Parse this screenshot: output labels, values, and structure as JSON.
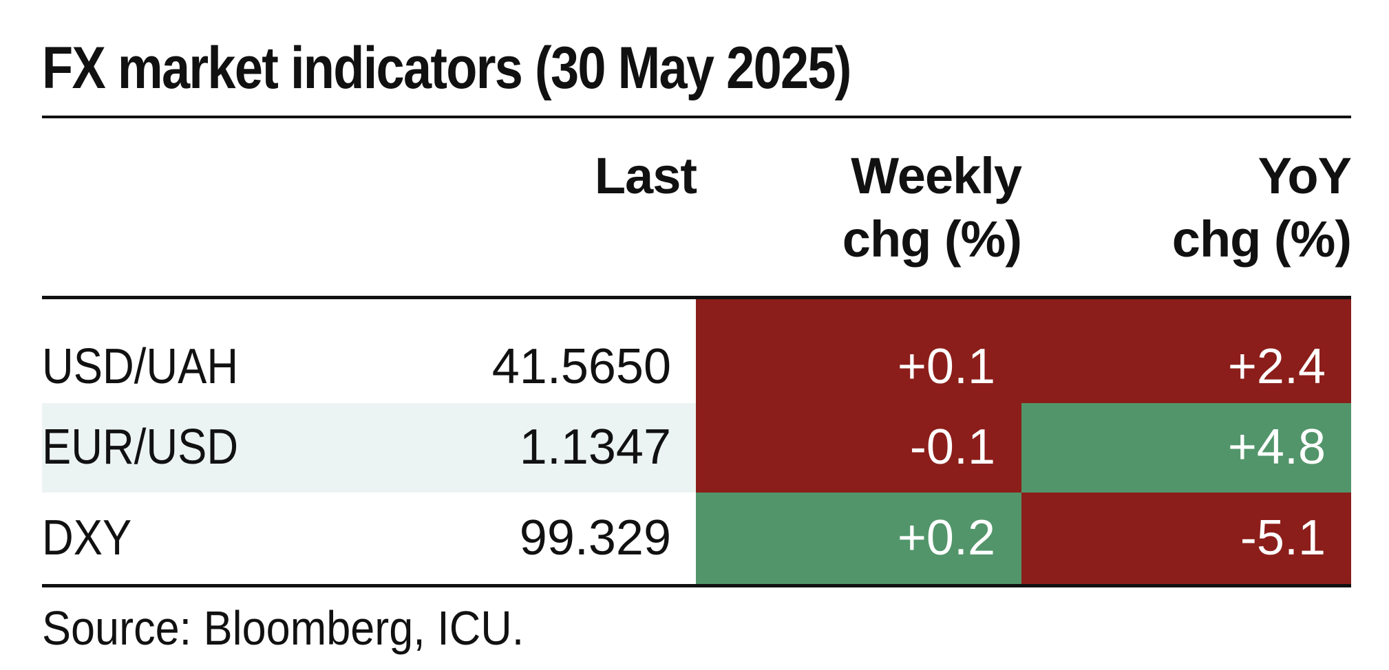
{
  "title": "FX market indicators (30 May 2025)",
  "headers": {
    "last": "Last",
    "weekly_line1": "Weekly",
    "weekly_line2": "chg (%)",
    "yoy_line1": "YoY",
    "yoy_line2": "chg (%)"
  },
  "rows": [
    {
      "label": "USD/UAH",
      "last": "41.5650",
      "weekly": "+0.1",
      "yoy": "+2.4"
    },
    {
      "label": "EUR/USD",
      "last": "1.1347",
      "weekly": "-0.1",
      "yoy": "+4.8"
    },
    {
      "label": "DXY",
      "last": "99.329",
      "weekly": "+0.2",
      "yoy": "-5.1"
    }
  ],
  "cell_colors": {
    "red": "#8b1e1a",
    "green": "#52956a",
    "band": "#ecf4f3"
  },
  "source": "Source: Bloomberg, ICU."
}
